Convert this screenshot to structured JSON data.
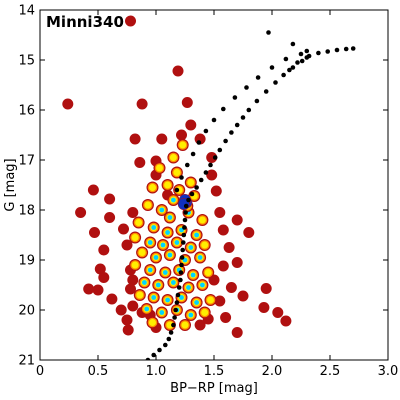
{
  "chart_data": {
    "type": "scatter",
    "title": "Minni340",
    "xlabel": "BP−RP [mag]",
    "ylabel": "G [mag]",
    "xlim": [
      0,
      3.0
    ],
    "ylim": [
      21,
      14
    ],
    "y_inverted": true,
    "grid": false,
    "legend": "none",
    "xticks": [
      0,
      0.5,
      1.0,
      1.5,
      2.0,
      2.5,
      3.0
    ],
    "xtick_labels": [
      "0",
      "0.5",
      "1.0",
      "1.5",
      "2.0",
      "2.5",
      "3.0"
    ],
    "yticks": [
      14,
      15,
      16,
      17,
      18,
      19,
      20,
      21
    ],
    "ytick_labels": [
      "14",
      "15",
      "16",
      "17",
      "18",
      "19",
      "20",
      "21"
    ],
    "colors": {
      "field_star": "#b01010",
      "member_low": "#ff8c00",
      "member_mid": "#ffee00",
      "member_high": "#00d4ff",
      "member_peak": "#1030c0",
      "isochrone": "#000000"
    },
    "field_stars": [
      [
        0.78,
        14.22
      ],
      [
        1.19,
        15.22
      ],
      [
        0.24,
        15.88
      ],
      [
        0.88,
        15.88
      ],
      [
        1.27,
        15.85
      ],
      [
        0.82,
        16.58
      ],
      [
        1.05,
        16.58
      ],
      [
        1.22,
        16.5
      ],
      [
        1.3,
        16.3
      ],
      [
        1.38,
        16.58
      ],
      [
        1.0,
        17.02
      ],
      [
        1.48,
        16.95
      ],
      [
        0.86,
        17.05
      ],
      [
        1.0,
        17.3
      ],
      [
        1.48,
        17.3
      ],
      [
        0.46,
        17.6
      ],
      [
        0.6,
        17.78
      ],
      [
        1.1,
        17.7
      ],
      [
        1.52,
        17.62
      ],
      [
        0.35,
        18.05
      ],
      [
        0.6,
        18.15
      ],
      [
        0.8,
        18.05
      ],
      [
        1.55,
        18.05
      ],
      [
        0.47,
        18.45
      ],
      [
        0.72,
        18.38
      ],
      [
        1.7,
        18.2
      ],
      [
        1.58,
        18.4
      ],
      [
        1.8,
        18.45
      ],
      [
        0.55,
        18.8
      ],
      [
        0.75,
        18.7
      ],
      [
        1.63,
        18.75
      ],
      [
        0.52,
        19.18
      ],
      [
        0.78,
        19.2
      ],
      [
        1.58,
        19.12
      ],
      [
        1.7,
        19.05
      ],
      [
        0.55,
        19.35
      ],
      [
        0.8,
        19.4
      ],
      [
        1.5,
        19.4
      ],
      [
        0.5,
        19.6
      ],
      [
        0.78,
        19.58
      ],
      [
        1.65,
        19.55
      ],
      [
        0.42,
        19.58
      ],
      [
        1.95,
        19.57
      ],
      [
        0.62,
        19.78
      ],
      [
        0.8,
        19.92
      ],
      [
        1.75,
        19.72
      ],
      [
        1.55,
        19.82
      ],
      [
        1.93,
        19.95
      ],
      [
        2.05,
        20.05
      ],
      [
        0.7,
        20.0
      ],
      [
        0.75,
        20.2
      ],
      [
        2.12,
        20.22
      ],
      [
        0.76,
        20.4
      ],
      [
        1.45,
        20.18
      ],
      [
        1.7,
        20.45
      ],
      [
        1.0,
        20.35
      ],
      [
        0.88,
        20.05
      ],
      [
        1.6,
        20.15
      ],
      [
        1.38,
        20.3
      ],
      [
        0.95,
        20.1
      ]
    ],
    "cluster_members": [
      [
        1.15,
        16.95,
        0.2
      ],
      [
        1.03,
        17.16,
        0.35
      ],
      [
        1.18,
        17.25,
        0.3
      ],
      [
        1.1,
        17.5,
        0.4
      ],
      [
        1.3,
        17.45,
        0.35
      ],
      [
        1.2,
        17.6,
        0.5
      ],
      [
        0.97,
        17.55,
        0.35
      ],
      [
        1.15,
        17.8,
        0.55
      ],
      [
        1.33,
        17.72,
        0.4
      ],
      [
        0.93,
        17.9,
        0.45
      ],
      [
        1.05,
        18.0,
        0.6
      ],
      [
        1.12,
        18.15,
        0.7
      ],
      [
        1.28,
        18.05,
        0.55
      ],
      [
        1.4,
        18.2,
        0.45
      ],
      [
        0.85,
        18.25,
        0.4
      ],
      [
        0.98,
        18.35,
        0.6
      ],
      [
        1.1,
        18.45,
        0.75
      ],
      [
        1.22,
        18.4,
        0.7
      ],
      [
        1.35,
        18.5,
        0.55
      ],
      [
        0.82,
        18.55,
        0.35
      ],
      [
        0.95,
        18.65,
        0.6
      ],
      [
        1.06,
        18.7,
        0.8
      ],
      [
        1.18,
        18.65,
        0.8
      ],
      [
        1.3,
        18.75,
        0.65
      ],
      [
        1.42,
        18.7,
        0.45
      ],
      [
        0.88,
        18.85,
        0.5
      ],
      [
        1.0,
        18.95,
        0.75
      ],
      [
        1.12,
        18.9,
        0.85
      ],
      [
        1.25,
        19.0,
        0.8
      ],
      [
        1.38,
        18.95,
        0.55
      ],
      [
        0.82,
        19.1,
        0.4
      ],
      [
        0.95,
        19.2,
        0.7
      ],
      [
        1.08,
        19.25,
        0.9
      ],
      [
        1.2,
        19.2,
        0.85
      ],
      [
        1.32,
        19.3,
        0.7
      ],
      [
        1.45,
        19.25,
        0.45
      ],
      [
        0.9,
        19.45,
        0.55
      ],
      [
        1.02,
        19.5,
        0.85
      ],
      [
        1.15,
        19.45,
        0.9
      ],
      [
        1.28,
        19.55,
        0.8
      ],
      [
        1.4,
        19.5,
        0.55
      ],
      [
        0.86,
        19.7,
        0.45
      ],
      [
        0.98,
        19.75,
        0.75
      ],
      [
        1.1,
        19.8,
        0.85
      ],
      [
        1.22,
        19.75,
        0.8
      ],
      [
        1.35,
        19.85,
        0.65
      ],
      [
        1.47,
        19.8,
        0.4
      ],
      [
        0.92,
        19.98,
        0.55
      ],
      [
        1.05,
        20.05,
        0.7
      ],
      [
        1.18,
        20.0,
        0.75
      ],
      [
        1.3,
        20.1,
        0.6
      ],
      [
        1.42,
        20.05,
        0.45
      ],
      [
        0.97,
        20.25,
        0.4
      ],
      [
        1.12,
        20.3,
        0.5
      ],
      [
        1.25,
        20.3,
        0.45
      ],
      [
        1.23,
        16.7,
        0.25
      ],
      [
        1.27,
        17.92,
        0.85
      ],
      [
        1.26,
        17.85,
        1.0
      ],
      [
        1.25,
        17.8,
        1.0
      ],
      [
        1.24,
        17.88,
        0.95
      ]
    ],
    "isochrone": [
      [
        0.93,
        21.0
      ],
      [
        0.98,
        20.9
      ],
      [
        1.03,
        20.8
      ],
      [
        1.08,
        20.7
      ],
      [
        1.11,
        20.58
      ],
      [
        1.13,
        20.45
      ],
      [
        1.15,
        20.3
      ],
      [
        1.16,
        20.15
      ],
      [
        1.17,
        20.0
      ],
      [
        1.18,
        19.85
      ],
      [
        1.19,
        19.7
      ],
      [
        1.2,
        19.55
      ],
      [
        1.21,
        19.4
      ],
      [
        1.215,
        19.25
      ],
      [
        1.22,
        19.1
      ],
      [
        1.225,
        18.95
      ],
      [
        1.23,
        18.8
      ],
      [
        1.235,
        18.65
      ],
      [
        1.24,
        18.5
      ],
      [
        1.245,
        18.35
      ],
      [
        1.25,
        18.2
      ],
      [
        1.255,
        18.05
      ],
      [
        1.26,
        17.92
      ],
      [
        1.28,
        17.8
      ],
      [
        1.31,
        17.68
      ],
      [
        1.35,
        17.55
      ],
      [
        1.39,
        17.4
      ],
      [
        1.43,
        17.25
      ],
      [
        1.47,
        17.1
      ],
      [
        1.51,
        16.95
      ],
      [
        1.55,
        16.8
      ],
      [
        1.6,
        16.62
      ],
      [
        1.65,
        16.45
      ],
      [
        1.7,
        16.3
      ],
      [
        1.75,
        16.15
      ],
      [
        1.8,
        16.0
      ],
      [
        1.87,
        15.82
      ],
      [
        1.95,
        15.63
      ],
      [
        2.03,
        15.45
      ],
      [
        2.1,
        15.3
      ],
      [
        2.18,
        15.15
      ],
      [
        2.26,
        15.02
      ],
      [
        2.32,
        14.92
      ],
      [
        2.4,
        14.86
      ],
      [
        2.48,
        14.83
      ],
      [
        2.56,
        14.8
      ],
      [
        2.64,
        14.78
      ],
      [
        2.7,
        14.77
      ],
      [
        1.18,
        17.6
      ],
      [
        1.22,
        17.35
      ],
      [
        1.27,
        17.1
      ],
      [
        1.32,
        16.88
      ],
      [
        1.37,
        16.65
      ],
      [
        1.43,
        16.42
      ],
      [
        1.5,
        16.2
      ],
      [
        1.58,
        15.98
      ],
      [
        1.68,
        15.75
      ],
      [
        1.78,
        15.55
      ],
      [
        1.88,
        15.35
      ],
      [
        2.0,
        15.15
      ],
      [
        2.12,
        14.98
      ],
      [
        2.25,
        14.88
      ],
      [
        2.3,
        14.95
      ],
      [
        2.22,
        15.05
      ],
      [
        2.15,
        15.2
      ],
      [
        1.97,
        14.45
      ],
      [
        2.18,
        14.68
      ],
      [
        2.3,
        14.82
      ]
    ]
  }
}
